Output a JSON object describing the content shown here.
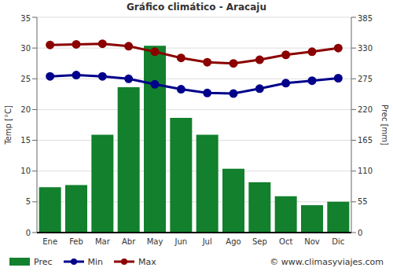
{
  "chart_data": {
    "type": "bar",
    "title": "Gráfico climático - Aracaju",
    "y_label": "Temp [°C]",
    "y2_label": "Prec [mm]",
    "annotations": [
      "© www.climasyviajes.com"
    ],
    "categories": [
      "Ene",
      "Feb",
      "Mar",
      "Abr",
      "May",
      "Jun",
      "Jul",
      "Ago",
      "Sep",
      "Oct",
      "Nov",
      "Dic"
    ],
    "series": [
      {
        "name": "Prec",
        "type": "bar",
        "axis": "y2",
        "color": "#12802c",
        "values": [
          81,
          85,
          175,
          260,
          334,
          205,
          175,
          114,
          90,
          65,
          49,
          55
        ]
      },
      {
        "name": "Min",
        "type": "line",
        "marker": "circle",
        "color": "#00008b",
        "values": [
          25.4,
          25.6,
          25.4,
          25.0,
          24.1,
          23.3,
          22.7,
          22.6,
          23.4,
          24.3,
          24.7,
          25.1
        ]
      },
      {
        "name": "Max",
        "type": "line",
        "marker": "circle",
        "color": "#8b0000",
        "values": [
          30.5,
          30.6,
          30.7,
          30.3,
          29.4,
          28.4,
          27.7,
          27.5,
          28.1,
          28.9,
          29.4,
          30.0
        ]
      }
    ],
    "ylim": [
      0,
      35
    ],
    "yticks": [
      0,
      5,
      10,
      15,
      20,
      25,
      30,
      35
    ],
    "y2lim": [
      0,
      385
    ],
    "y2ticks": [
      0,
      55,
      110,
      165,
      220,
      275,
      330,
      385
    ],
    "grid": true,
    "legend": "bottom"
  }
}
